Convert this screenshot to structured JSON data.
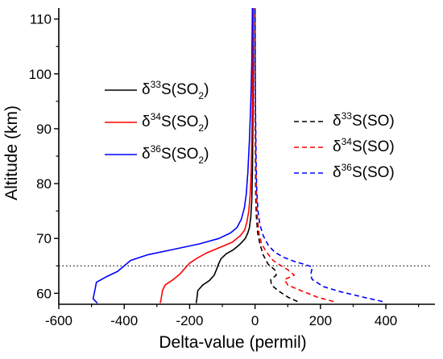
{
  "chart_data": {
    "type": "line",
    "title": "",
    "xlabel": "Delta-value (permil)",
    "ylabel": "Altitude (km)",
    "xlim": [
      -600,
      550
    ],
    "ylim": [
      58,
      112
    ],
    "xticks": [
      -600,
      -400,
      -200,
      0,
      200,
      400
    ],
    "yticks": [
      60,
      70,
      80,
      90,
      100,
      110
    ],
    "grid": false,
    "reference_line": {
      "y": 65,
      "style": "dotted"
    },
    "legend": [
      {
        "key": "d33so2",
        "text": "δ33S(SO2)",
        "prefix": "δ",
        "sup": "33",
        "base": "S(SO",
        "sub": "2",
        "suffix": ")"
      },
      {
        "key": "d34so2",
        "text": "δ34S(SO2)",
        "prefix": "δ",
        "sup": "34",
        "base": "S(SO",
        "sub": "2",
        "suffix": ")"
      },
      {
        "key": "d36so2",
        "text": "δ36S(SO2)",
        "prefix": "δ",
        "sup": "36",
        "base": "S(SO",
        "sub": "2",
        "suffix": ")"
      },
      {
        "key": "d33so",
        "text": "δ33S(SO)",
        "prefix": "δ",
        "sup": "33",
        "base": "S(SO)",
        "sub": "",
        "suffix": ""
      },
      {
        "key": "d34so",
        "text": "δ34S(SO)",
        "prefix": "δ",
        "sup": "34",
        "base": "S(SO)",
        "sub": "",
        "suffix": ""
      },
      {
        "key": "d36so",
        "text": "δ36S(SO)",
        "prefix": "δ",
        "sup": "36",
        "base": "S(SO)",
        "sub": "",
        "suffix": ""
      }
    ],
    "series": [
      {
        "key": "d33so2",
        "name": "δ33S(SO2)",
        "color": "#000000",
        "dash": "solid",
        "points": [
          [
            -180,
            58.2
          ],
          [
            -178,
            59
          ],
          [
            -175,
            60.5
          ],
          [
            -160,
            61.5
          ],
          [
            -140,
            62.3
          ],
          [
            -125,
            63.3
          ],
          [
            -118,
            64.3
          ],
          [
            -112,
            65.3
          ],
          [
            -104,
            66.3
          ],
          [
            -88,
            67.2
          ],
          [
            -65,
            68
          ],
          [
            -45,
            69
          ],
          [
            -30,
            70
          ],
          [
            -22,
            71
          ],
          [
            -17,
            72
          ],
          [
            -13,
            74
          ],
          [
            -10,
            77
          ],
          [
            -8,
            82
          ],
          [
            -7,
            88
          ],
          [
            -6,
            95
          ],
          [
            -5,
            102
          ],
          [
            -5,
            112
          ]
        ]
      },
      {
        "key": "d34so2",
        "name": "δ34S(SO2)",
        "color": "#ff0000",
        "dash": "solid",
        "points": [
          [
            -290,
            58.2
          ],
          [
            -287,
            59
          ],
          [
            -283,
            60.5
          ],
          [
            -275,
            61.5
          ],
          [
            -250,
            62.5
          ],
          [
            -230,
            63.5
          ],
          [
            -215,
            64.5
          ],
          [
            -200,
            65.5
          ],
          [
            -180,
            66.3
          ],
          [
            -150,
            67.3
          ],
          [
            -110,
            68.3
          ],
          [
            -70,
            69.3
          ],
          [
            -45,
            70.5
          ],
          [
            -32,
            71.5
          ],
          [
            -25,
            73
          ],
          [
            -19,
            75
          ],
          [
            -15,
            78
          ],
          [
            -12,
            82
          ],
          [
            -10,
            88
          ],
          [
            -8,
            95
          ],
          [
            -7,
            102
          ],
          [
            -6,
            112
          ]
        ]
      },
      {
        "key": "d36so2",
        "name": "δ36S(SO2)",
        "color": "#0000ff",
        "dash": "solid",
        "points": [
          [
            -482,
            58.2
          ],
          [
            -495,
            59
          ],
          [
            -490,
            60.5
          ],
          [
            -485,
            62
          ],
          [
            -455,
            63
          ],
          [
            -420,
            64
          ],
          [
            -400,
            65
          ],
          [
            -380,
            66
          ],
          [
            -330,
            67
          ],
          [
            -250,
            68
          ],
          [
            -170,
            69
          ],
          [
            -110,
            70
          ],
          [
            -75,
            71
          ],
          [
            -55,
            72
          ],
          [
            -42,
            73.5
          ],
          [
            -33,
            75.5
          ],
          [
            -27,
            78
          ],
          [
            -22,
            82
          ],
          [
            -17,
            88
          ],
          [
            -13,
            95
          ],
          [
            -10,
            102
          ],
          [
            -8,
            112
          ]
        ]
      },
      {
        "key": "d33so",
        "name": "δ33S(SO)",
        "color": "#000000",
        "dash": "dashed",
        "points": [
          [
            130,
            58.5
          ],
          [
            100,
            59.3
          ],
          [
            70,
            60.5
          ],
          [
            50,
            61.5
          ],
          [
            48,
            62.5
          ],
          [
            65,
            63.3
          ],
          [
            60,
            64.3
          ],
          [
            40,
            65.3
          ],
          [
            25,
            67
          ],
          [
            15,
            69
          ],
          [
            8,
            71
          ],
          [
            4,
            74
          ],
          [
            2,
            78
          ],
          [
            1,
            85
          ],
          [
            0,
            95
          ],
          [
            0,
            112
          ]
        ]
      },
      {
        "key": "d34so",
        "name": "δ34S(SO)",
        "color": "#ff0000",
        "dash": "dashed",
        "points": [
          [
            240,
            58.5
          ],
          [
            190,
            59.3
          ],
          [
            140,
            60.5
          ],
          [
            100,
            61.5
          ],
          [
            90,
            62.5
          ],
          [
            120,
            63.3
          ],
          [
            100,
            64.3
          ],
          [
            80,
            65
          ],
          [
            55,
            66
          ],
          [
            35,
            67.5
          ],
          [
            20,
            69
          ],
          [
            12,
            71
          ],
          [
            7,
            74
          ],
          [
            4,
            78
          ],
          [
            2,
            85
          ],
          [
            1,
            95
          ],
          [
            0,
            112
          ]
        ]
      },
      {
        "key": "d36so",
        "name": "δ36S(SO)",
        "color": "#0000ff",
        "dash": "dashed",
        "points": [
          [
            390,
            58.5
          ],
          [
            330,
            59.3
          ],
          [
            260,
            60.3
          ],
          [
            210,
            61.2
          ],
          [
            175,
            62.5
          ],
          [
            170,
            63.3
          ],
          [
            175,
            64.8
          ],
          [
            150,
            65.3
          ],
          [
            120,
            65.8
          ],
          [
            90,
            66.5
          ],
          [
            60,
            67.5
          ],
          [
            40,
            68.8
          ],
          [
            25,
            70.5
          ],
          [
            15,
            72.5
          ],
          [
            9,
            75
          ],
          [
            5,
            79
          ],
          [
            3,
            85
          ],
          [
            1,
            95
          ],
          [
            0,
            112
          ]
        ]
      }
    ]
  }
}
